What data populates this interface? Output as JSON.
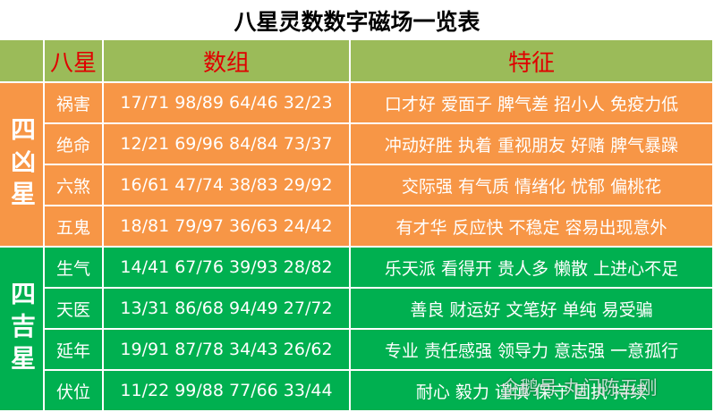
{
  "title": "八星灵数数字磁场一览表",
  "header": [
    "八星",
    "数组",
    "特征"
  ],
  "groups": [
    {
      "label": "四凶星",
      "rows": [
        {
          "name": "祸害",
          "numbers": "17/71 98/89 64/46 32/23",
          "traits": "口才好 爱面子 脾气差 招小人 免疫力低"
        },
        {
          "name": "绝命",
          "numbers": "12/21 69/96 84/84 73/37",
          "traits": "冲动好胜 执着 重视朋友 好赌 脾气暴躁"
        },
        {
          "name": "六煞",
          "numbers": "16/61 47/74 38/83 29/92",
          "traits": "交际强 有气质 情绪化 忧郁 偏桃花"
        },
        {
          "name": "五鬼",
          "numbers": "18/81 79/97 36/63 24/42",
          "traits": "有才华 反应快 不稳定 容易出现意外"
        }
      ]
    },
    {
      "label": "四吉星",
      "rows": [
        {
          "name": "生气",
          "numbers": "14/41 67/76 39/93 28/82",
          "traits": "乐天派 看得开 贵人多 懒散 上进心不足"
        },
        {
          "name": "天医",
          "numbers": "13/31 86/68 94/49 27/72",
          "traits": "善良 财运好 文笔好 单纯 易受骗"
        },
        {
          "name": "延年",
          "numbers": "19/91 87/78 34/43 26/62",
          "traits": "专业 责任感强 领导力 意志强 一意孤行"
        },
        {
          "name": "伏位",
          "numbers": "11/22 99/88 77/66 33/44",
          "traits": "耐心 毅力 谨慎 保守 固执 持续"
        }
      ]
    }
  ],
  "watermark": "企鹅号 丸门陈五刚"
}
